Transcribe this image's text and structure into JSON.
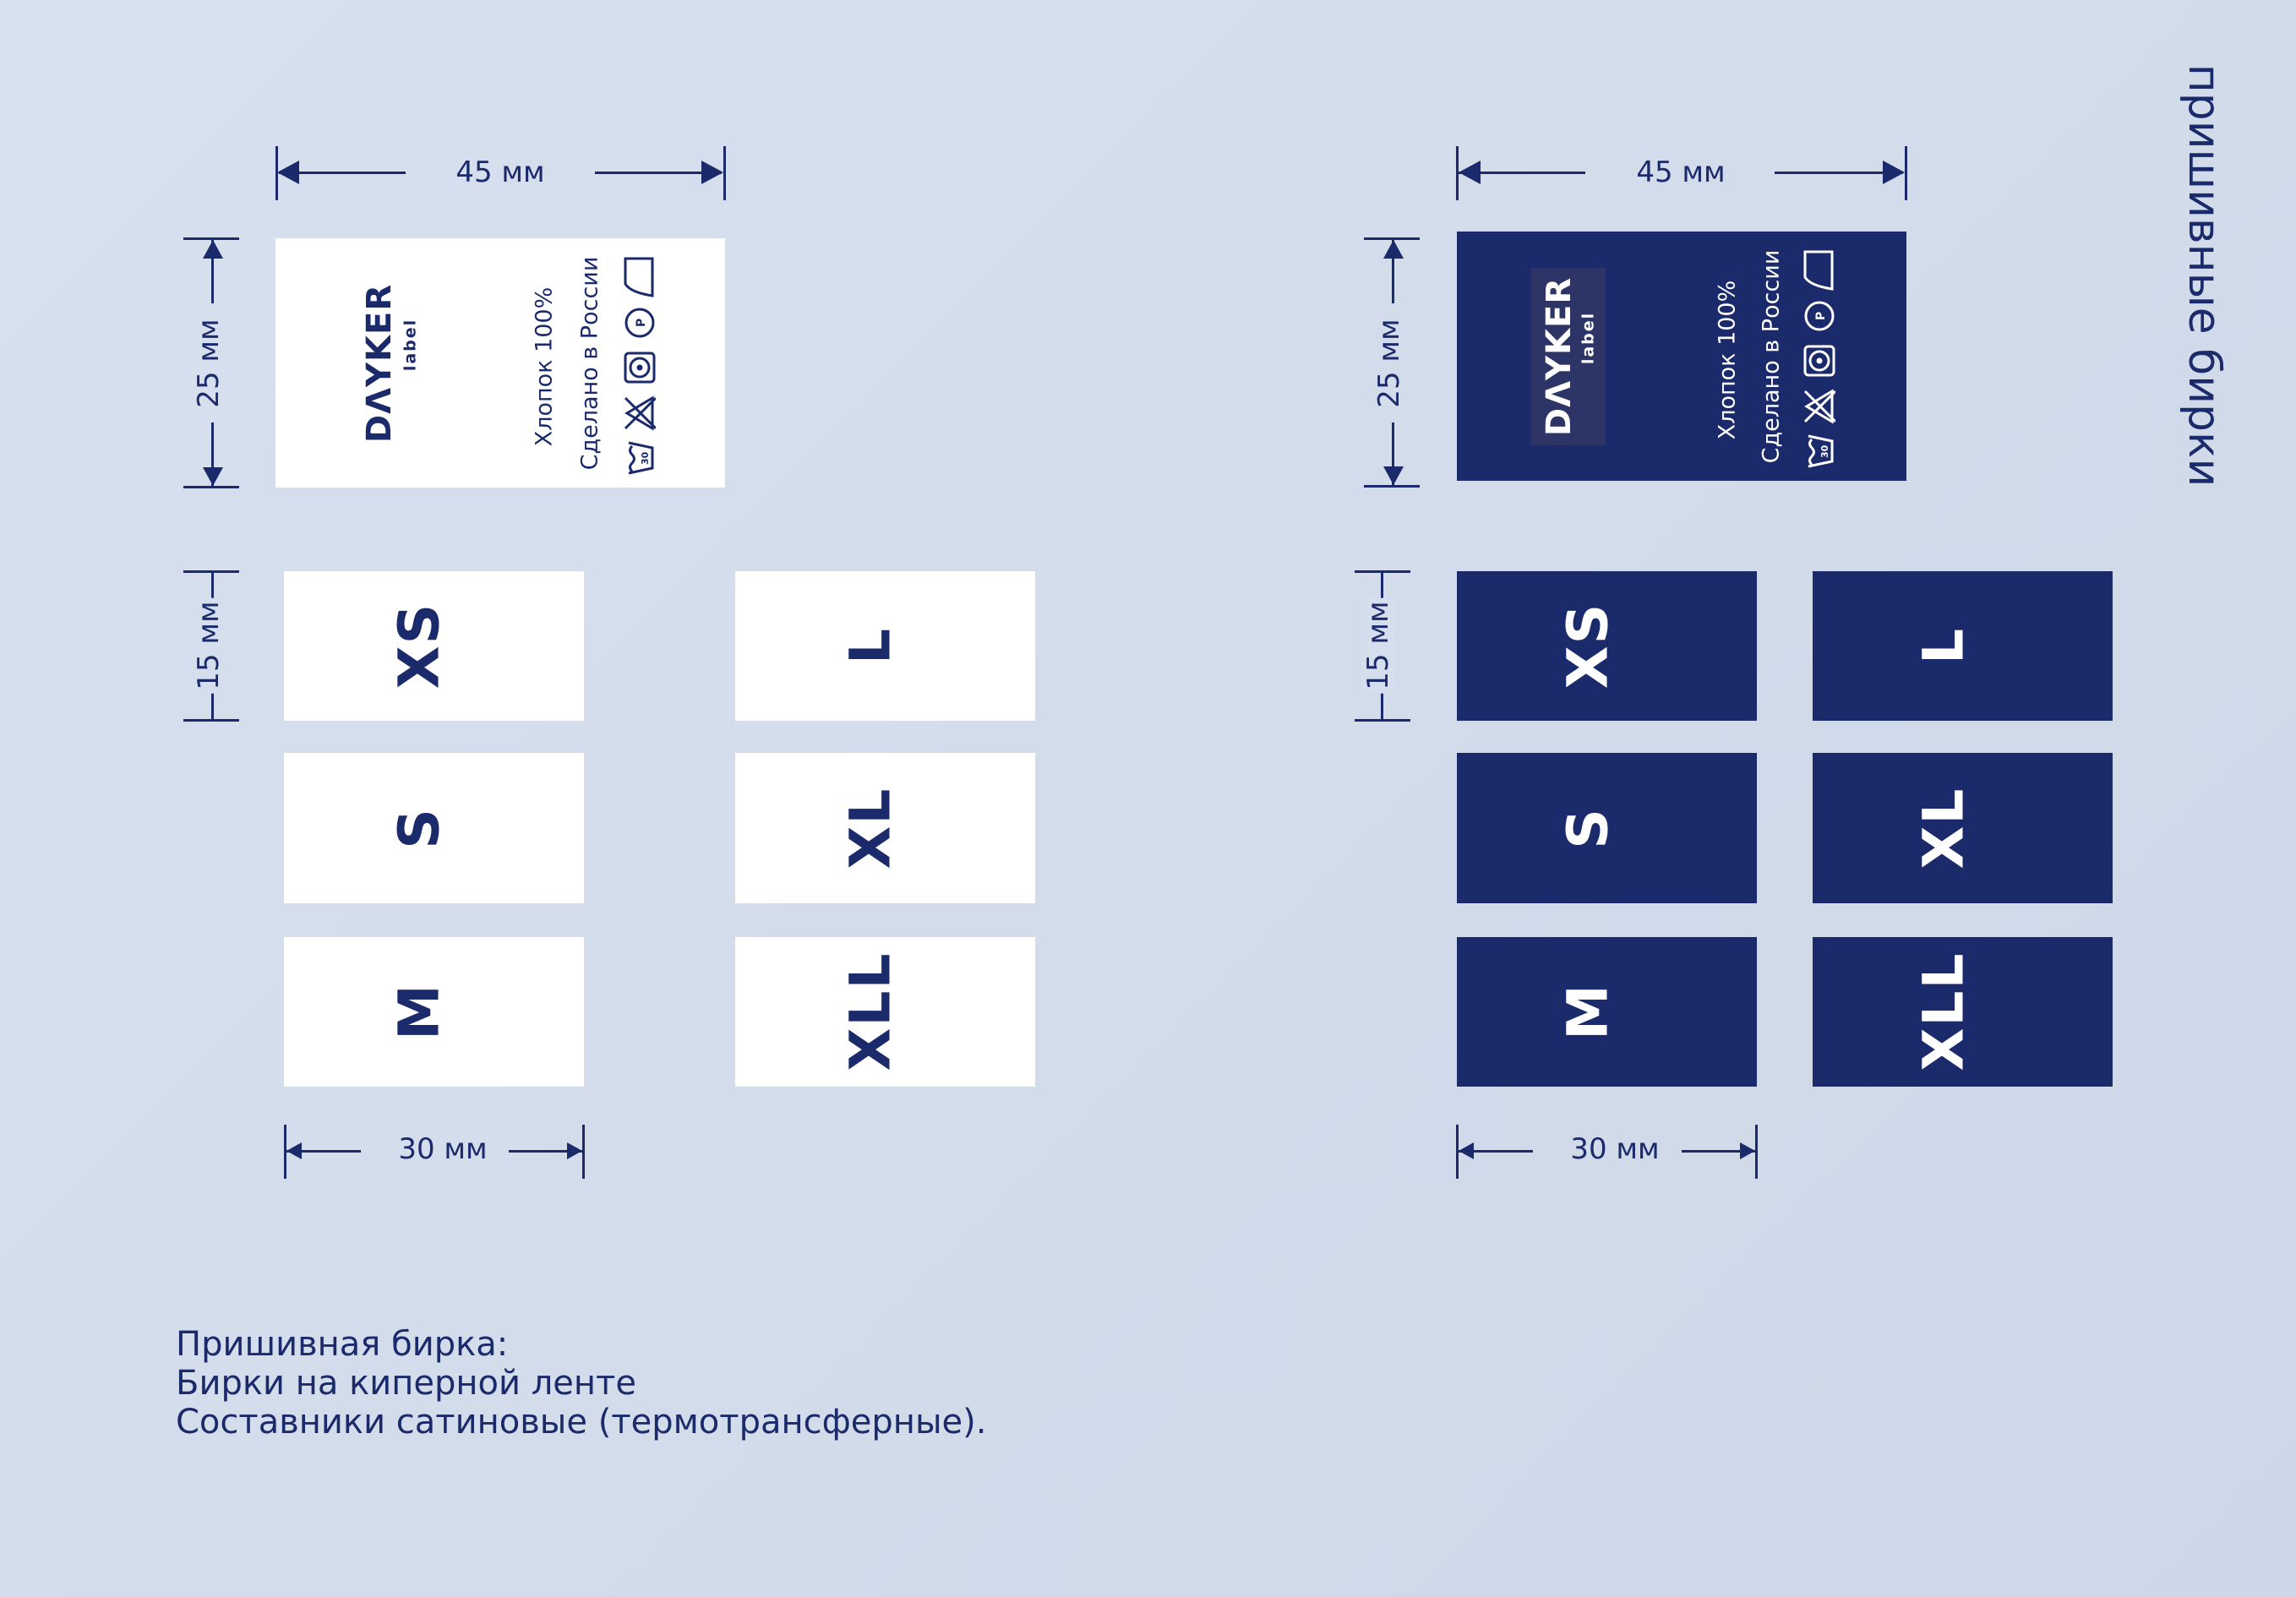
{
  "page_title": "пришивные бирки",
  "dimensions": {
    "width_main": "45 мм",
    "height_main": "25 мм",
    "height_size": "15 мм",
    "width_size": "30 мм"
  },
  "main_label": {
    "brand": "DΛYKER",
    "brand_sub": "label",
    "line1": "Хлопок 100%",
    "line2": "Сделано в России",
    "wash_temp": "30",
    "dryclean_letter": "P",
    "care_icons": [
      "wash-30-icon",
      "no-bleach-icon",
      "tumble-dry-icon",
      "dry-clean-p-icon",
      "iron-icon"
    ]
  },
  "sizes_left": [
    "XS",
    "S",
    "M"
  ],
  "sizes_right": [
    "L",
    "XL",
    "XLL"
  ],
  "notes": [
    "Пришивная бирка:",
    "Бирки на киперной ленте",
    "Составники сатиновые (термотрансферные)."
  ],
  "colors": {
    "navy": "#1b2a6b",
    "white": "#ffffff",
    "background": "#d3ddeb",
    "logo_box": "#2d3566"
  }
}
